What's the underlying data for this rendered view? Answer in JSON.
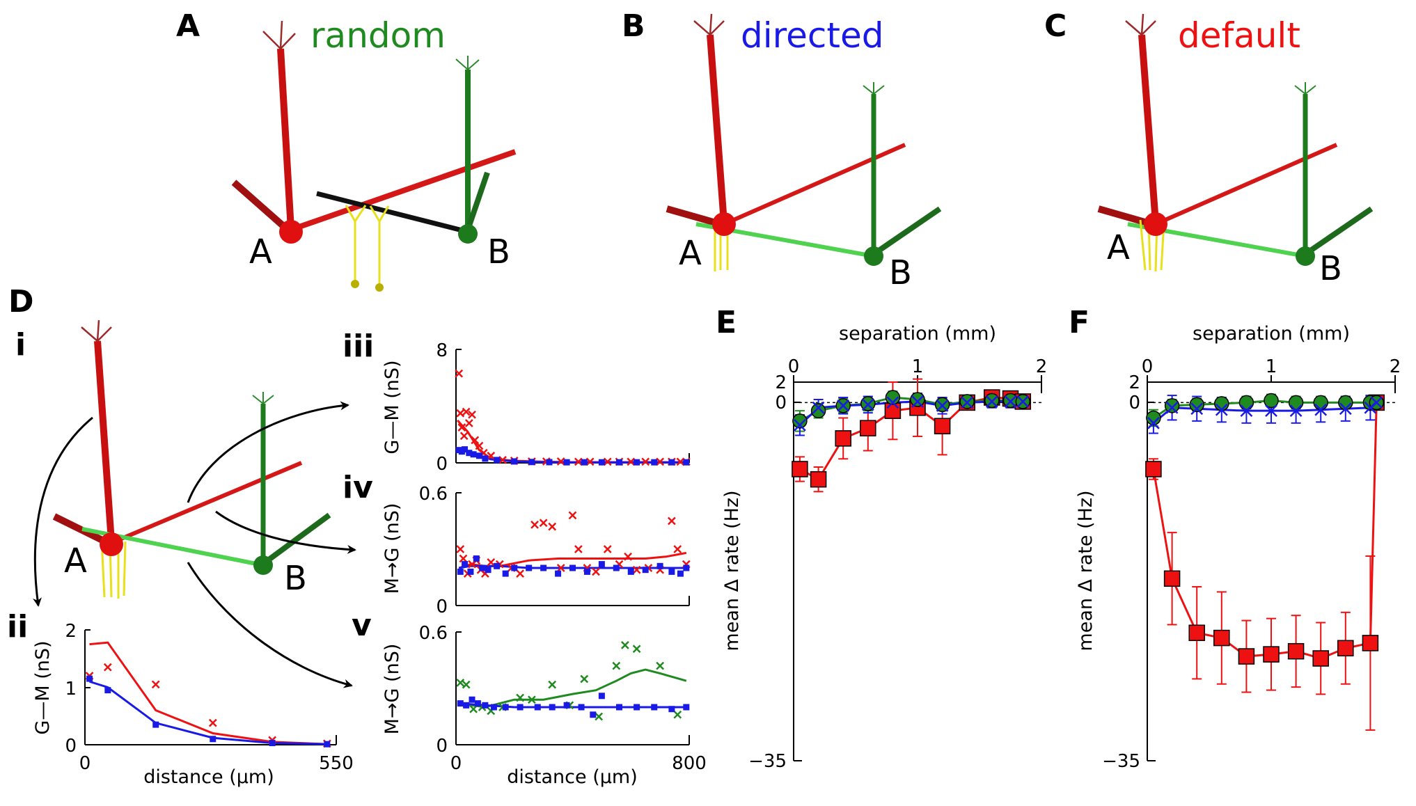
{
  "colors": {
    "red": "#ee1111",
    "blue": "#1a1ae6",
    "green": "#1f8a1f",
    "yellow": "#e8e01a",
    "black": "#000000"
  },
  "panels": {
    "A": {
      "letter": "A",
      "title": "random",
      "title_color": "#1f8a1f"
    },
    "B": {
      "letter": "B",
      "title": "directed",
      "title_color": "#1a1ae6"
    },
    "C": {
      "letter": "C",
      "title": "default",
      "title_color": "#ee1111"
    },
    "D": {
      "letter": "D",
      "sub_i": "i",
      "sub_ii": "ii",
      "sub_iii": "iii",
      "sub_iv": "iv",
      "sub_v": "v"
    },
    "E": {
      "letter": "E"
    },
    "F": {
      "letter": "F"
    }
  },
  "neurons": {
    "a": "A",
    "b": "B"
  },
  "icons": {
    "arrow": "curved-arrow-icon",
    "neuron": "neuron-icon"
  },
  "chart_data": [
    {
      "id": "ii",
      "type": "line",
      "xlabel": "distance (μm)",
      "ylabel": "G—M (nS)",
      "xlim": [
        0,
        550
      ],
      "ylim": [
        0,
        2
      ],
      "xticks": [
        "0",
        "550"
      ],
      "yticks": [
        "0",
        "1",
        "2"
      ],
      "series": [
        {
          "name": "red",
          "color": "red",
          "x": [
            10,
            50,
            155,
            280,
            410,
            530
          ],
          "values": [
            1.75,
            1.78,
            0.6,
            0.2,
            0.05,
            0.01
          ]
        },
        {
          "name": "blue",
          "color": "blue",
          "x": [
            10,
            50,
            155,
            280,
            410,
            530
          ],
          "values": [
            1.1,
            1.0,
            0.38,
            0.12,
            0.03,
            0.01
          ]
        }
      ],
      "markers": [
        {
          "color": "red",
          "shape": "x",
          "x": [
            10,
            50,
            155,
            280,
            410,
            530
          ],
          "values": [
            1.2,
            1.35,
            1.05,
            0.38,
            0.08,
            0.02
          ]
        },
        {
          "color": "blue",
          "shape": "sq",
          "x": [
            10,
            50,
            155,
            280,
            410,
            530
          ],
          "values": [
            1.15,
            0.95,
            0.35,
            0.1,
            0.03,
            0.01
          ]
        }
      ]
    },
    {
      "id": "iii",
      "type": "line",
      "xlabel": "",
      "ylabel": "G—M (nS)",
      "xlim": [
        0,
        800
      ],
      "ylim": [
        0,
        8
      ],
      "xticks": [],
      "yticks": [
        "0",
        "8"
      ],
      "series": [
        {
          "name": "red",
          "color": "red",
          "x": [
            5,
            40,
            80,
            120,
            200,
            300,
            400,
            500,
            600,
            700,
            800
          ],
          "values": [
            3.0,
            2.2,
            0.9,
            0.3,
            0.15,
            0.08,
            0.05,
            0.05,
            0.05,
            0.05,
            0.05
          ]
        },
        {
          "name": "blue",
          "color": "blue",
          "x": [
            5,
            40,
            80,
            120,
            200,
            300,
            400,
            500,
            600,
            700,
            800
          ],
          "values": [
            0.9,
            0.8,
            0.5,
            0.25,
            0.1,
            0.05,
            0.03,
            0.03,
            0.03,
            0.03,
            0.03
          ]
        }
      ],
      "markers": [
        {
          "color": "red",
          "shape": "x",
          "x": [
            10,
            15,
            20,
            28,
            35,
            45,
            55,
            65,
            80,
            95,
            120,
            160,
            200,
            260,
            310,
            360,
            420,
            460,
            520,
            560,
            600,
            650,
            700,
            740,
            770,
            790
          ],
          "values": [
            6.3,
            3.5,
            2.5,
            1.9,
            3.6,
            2.8,
            3.4,
            1.6,
            1.2,
            0.7,
            0.5,
            0.2,
            0.15,
            0.1,
            0.1,
            0.1,
            0.08,
            0.08,
            0.08,
            0.08,
            0.08,
            0.08,
            0.08,
            0.08,
            0.08,
            0.08
          ]
        },
        {
          "color": "blue",
          "shape": "sq",
          "x": [
            10,
            20,
            30,
            45,
            60,
            80,
            100,
            140,
            200,
            260,
            320,
            380,
            440,
            500,
            560,
            620,
            680,
            740,
            790
          ],
          "values": [
            0.9,
            0.8,
            0.95,
            0.7,
            0.6,
            0.5,
            0.3,
            0.2,
            0.1,
            0.06,
            0.05,
            0.04,
            0.04,
            0.04,
            0.04,
            0.04,
            0.04,
            0.04,
            0.04
          ]
        }
      ]
    },
    {
      "id": "iv",
      "type": "line",
      "xlabel": "",
      "ylabel": "M→G (nS)",
      "xlim": [
        0,
        800
      ],
      "ylim": [
        0,
        0.6
      ],
      "xticks": [],
      "yticks": [
        "0",
        "0.6"
      ],
      "series": [
        {
          "name": "red",
          "color": "red",
          "x": [
            10,
            50,
            100,
            150,
            250,
            350,
            450,
            550,
            650,
            720,
            790
          ],
          "values": [
            0.2,
            0.22,
            0.21,
            0.21,
            0.24,
            0.25,
            0.25,
            0.25,
            0.25,
            0.26,
            0.28
          ]
        },
        {
          "name": "blue",
          "color": "blue",
          "x": [
            10,
            50,
            100,
            150,
            250,
            350,
            450,
            550,
            650,
            720,
            790
          ],
          "values": [
            0.2,
            0.21,
            0.21,
            0.21,
            0.2,
            0.2,
            0.2,
            0.2,
            0.2,
            0.2,
            0.2
          ]
        }
      ],
      "markers": [
        {
          "color": "red",
          "shape": "x",
          "x": [
            15,
            25,
            40,
            55,
            70,
            85,
            100,
            120,
            150,
            190,
            220,
            270,
            300,
            330,
            360,
            400,
            420,
            450,
            480,
            520,
            560,
            590,
            620,
            660,
            700,
            740,
            760,
            790
          ],
          "values": [
            0.3,
            0.25,
            0.17,
            0.22,
            0.24,
            0.19,
            0.17,
            0.23,
            0.22,
            0.2,
            0.17,
            0.43,
            0.44,
            0.42,
            0.2,
            0.48,
            0.3,
            0.2,
            0.18,
            0.3,
            0.22,
            0.26,
            0.19,
            0.2,
            0.19,
            0.45,
            0.3,
            0.22
          ]
        },
        {
          "color": "blue",
          "shape": "sq",
          "x": [
            15,
            30,
            50,
            70,
            90,
            110,
            140,
            170,
            200,
            250,
            300,
            350,
            400,
            450,
            500,
            550,
            600,
            650,
            700,
            740,
            770,
            790
          ],
          "values": [
            0.18,
            0.22,
            0.18,
            0.25,
            0.2,
            0.19,
            0.21,
            0.17,
            0.2,
            0.2,
            0.2,
            0.17,
            0.2,
            0.18,
            0.22,
            0.2,
            0.18,
            0.19,
            0.21,
            0.18,
            0.17,
            0.2
          ]
        }
      ]
    },
    {
      "id": "v",
      "type": "line",
      "xlabel": "distance (μm)",
      "ylabel": "M→G (nS)",
      "xlim": [
        0,
        800
      ],
      "ylim": [
        0,
        0.6
      ],
      "xticks": [
        "0",
        "800"
      ],
      "yticks": [
        "0",
        "0.6"
      ],
      "series": [
        {
          "name": "green",
          "color": "green",
          "x": [
            10,
            100,
            200,
            300,
            400,
            480,
            550,
            600,
            650,
            700,
            790
          ],
          "values": [
            0.22,
            0.2,
            0.24,
            0.24,
            0.27,
            0.29,
            0.34,
            0.38,
            0.4,
            0.38,
            0.34
          ]
        },
        {
          "name": "blue",
          "color": "blue",
          "x": [
            10,
            100,
            200,
            300,
            400,
            480,
            550,
            600,
            650,
            700,
            790
          ],
          "values": [
            0.22,
            0.21,
            0.2,
            0.2,
            0.2,
            0.2,
            0.2,
            0.2,
            0.2,
            0.2,
            0.2
          ]
        }
      ],
      "markers": [
        {
          "color": "green",
          "shape": "x",
          "x": [
            15,
            35,
            60,
            90,
            120,
            160,
            220,
            260,
            330,
            390,
            440,
            490,
            550,
            580,
            620,
            700,
            760
          ],
          "values": [
            0.33,
            0.32,
            0.19,
            0.2,
            0.18,
            0.2,
            0.25,
            0.24,
            0.32,
            0.21,
            0.35,
            0.15,
            0.42,
            0.53,
            0.51,
            0.42,
            0.16
          ]
        },
        {
          "color": "blue",
          "shape": "sq",
          "x": [
            15,
            35,
            55,
            75,
            100,
            130,
            170,
            220,
            280,
            330,
            380,
            430,
            470,
            500,
            560,
            620,
            680,
            740,
            790
          ],
          "values": [
            0.22,
            0.21,
            0.24,
            0.22,
            0.21,
            0.2,
            0.2,
            0.2,
            0.2,
            0.2,
            0.21,
            0.2,
            0.16,
            0.26,
            0.2,
            0.2,
            0.2,
            0.19,
            0.2
          ]
        }
      ]
    },
    {
      "id": "E",
      "type": "line",
      "xlabel": "separation (mm)",
      "ylabel": "mean Δ rate (Hz)",
      "xlim": [
        0,
        2
      ],
      "ylim": [
        -35,
        2
      ],
      "xticks": [
        "0",
        "1",
        "2"
      ],
      "yticks": [
        "2",
        "0",
        "−35"
      ],
      "series": [
        {
          "name": "default",
          "color": "red",
          "marker": "square",
          "x": [
            0.05,
            0.2,
            0.4,
            0.6,
            0.8,
            1.0,
            1.2,
            1.4,
            1.6,
            1.75,
            1.85
          ],
          "values": [
            -6.5,
            -7.5,
            -3.5,
            -2.5,
            -0.8,
            -0.5,
            -2.3,
            0.0,
            0.5,
            0.4,
            0.1
          ],
          "err": [
            1.2,
            1.2,
            2.0,
            2.2,
            2.8,
            2.8,
            2.8,
            0.5,
            0.6,
            0.6,
            0.5
          ]
        },
        {
          "name": "random",
          "color": "green",
          "marker": "circle",
          "x": [
            0.05,
            0.2,
            0.4,
            0.6,
            0.8,
            1.0,
            1.2,
            1.4,
            1.6,
            1.75,
            1.85
          ],
          "values": [
            -1.8,
            -0.8,
            -0.3,
            -0.1,
            0.5,
            0.3,
            -0.2,
            0.1,
            0.2,
            0.2,
            0.1
          ],
          "err": [
            1.0,
            0.7,
            0.7,
            0.7,
            0.6,
            0.6,
            0.6,
            0.5,
            0.5,
            0.5,
            0.5
          ]
        },
        {
          "name": "directed",
          "color": "blue",
          "marker": "x",
          "x": [
            0.05,
            0.2,
            0.4,
            0.6,
            0.8,
            1.0,
            1.2,
            1.4,
            1.6,
            1.75,
            1.85
          ],
          "values": [
            -2.2,
            -0.5,
            -0.3,
            -0.2,
            0.0,
            0.1,
            -0.3,
            0.0,
            0.1,
            0.1,
            0.1
          ],
          "err": [
            1.0,
            0.8,
            0.8,
            0.8,
            0.8,
            0.8,
            0.8,
            0.6,
            0.6,
            0.6,
            0.6
          ]
        }
      ]
    },
    {
      "id": "F",
      "type": "line",
      "xlabel": "separation (mm)",
      "ylabel": "mean Δ rate (Hz)",
      "xlim": [
        0,
        2
      ],
      "ylim": [
        -35,
        2
      ],
      "xticks": [
        "0",
        "1",
        "2"
      ],
      "yticks": [
        "2",
        "0",
        "−35"
      ],
      "series": [
        {
          "name": "default",
          "color": "red",
          "marker": "square",
          "x": [
            0.05,
            0.2,
            0.4,
            0.6,
            0.8,
            1.0,
            1.2,
            1.4,
            1.6,
            1.8,
            1.85
          ],
          "values": [
            -6.5,
            -17.2,
            -22.5,
            -23.0,
            -24.8,
            -24.6,
            -24.3,
            -25.0,
            -24.0,
            -23.5,
            0.0
          ],
          "err": [
            1.0,
            4.5,
            4.5,
            4.5,
            3.5,
            3.5,
            3.5,
            3.5,
            3.5,
            8.5,
            0.5
          ]
        },
        {
          "name": "random",
          "color": "green",
          "marker": "circle",
          "x": [
            0.05,
            0.2,
            0.4,
            0.6,
            0.8,
            1.0,
            1.2,
            1.4,
            1.6,
            1.8,
            1.85
          ],
          "values": [
            -1.5,
            -0.3,
            -0.2,
            -0.1,
            0.0,
            0.2,
            0.0,
            0.0,
            0.0,
            0.0,
            0.0
          ],
          "err": [
            0.8,
            0.6,
            0.6,
            0.6,
            0.6,
            0.6,
            0.6,
            0.6,
            0.6,
            0.6,
            0.6
          ]
        },
        {
          "name": "directed",
          "color": "blue",
          "marker": "x",
          "x": [
            0.05,
            0.2,
            0.4,
            0.6,
            0.8,
            1.0,
            1.2,
            1.4,
            1.6,
            1.8,
            1.85
          ],
          "values": [
            -2.0,
            -0.5,
            -0.6,
            -0.7,
            -0.8,
            -0.8,
            -0.8,
            -0.7,
            -0.6,
            -0.5,
            0.0
          ],
          "err": [
            1.0,
            1.2,
            1.2,
            1.2,
            1.2,
            1.2,
            1.2,
            1.2,
            1.2,
            1.2,
            0.5
          ]
        }
      ]
    }
  ]
}
